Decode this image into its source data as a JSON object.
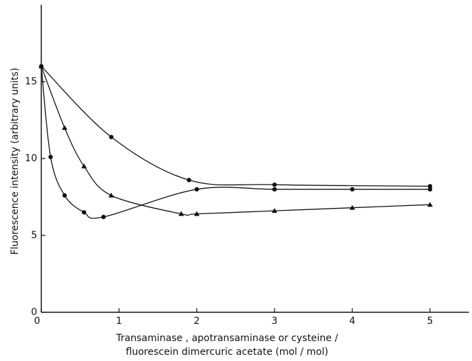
{
  "chart_data": {
    "type": "line",
    "y_label": "Fluorescence intensity (arbitrary units)",
    "x_label": [
      "Transaminase , apotransaminase or cysteine /",
      "fluorescein dimercuric acetate (mol / mol)"
    ],
    "xlim": [
      0,
      5.5
    ],
    "xticks": [
      0,
      1,
      2,
      3,
      4,
      5
    ],
    "ylim": [
      0,
      20
    ],
    "yticks": [
      0,
      5,
      10,
      15
    ],
    "color": "#111111",
    "series": [
      {
        "marker": "circle",
        "x": [
          0,
          0.9,
          1.9,
          3,
          5
        ],
        "values": [
          16,
          11.4,
          8.6,
          8.3,
          8.2
        ]
      },
      {
        "marker": "triangle",
        "x": [
          0,
          0.3,
          0.55,
          0.9,
          1.8,
          2.0,
          3,
          4,
          5
        ],
        "values": [
          16,
          12,
          9.5,
          7.6,
          6.4,
          6.4,
          6.6,
          6.8,
          7.0
        ]
      },
      {
        "marker": "circle",
        "x": [
          0,
          0.12,
          0.3,
          0.55,
          0.8,
          2.0,
          3,
          4,
          5
        ],
        "values": [
          16,
          10.1,
          7.6,
          6.5,
          6.2,
          8.0,
          8.0,
          8.0,
          8.0
        ]
      }
    ]
  }
}
